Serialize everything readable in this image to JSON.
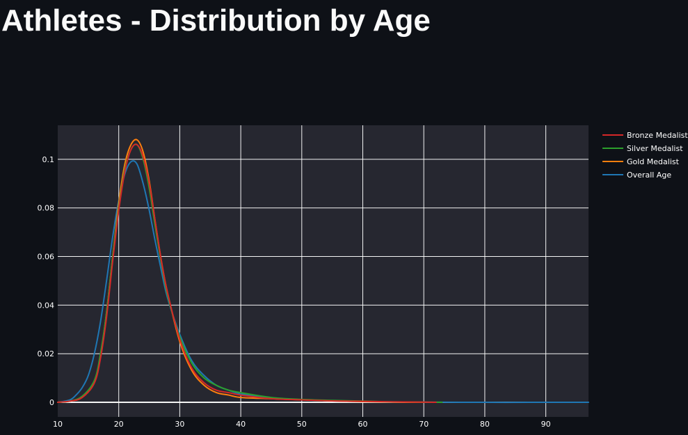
{
  "page": {
    "title": "Athletes - Distribution by Age"
  },
  "chart_data": {
    "type": "line",
    "title": "",
    "xlabel": "",
    "ylabel": "",
    "xlim": [
      10,
      97
    ],
    "ylim": [
      -0.006,
      0.114
    ],
    "x_ticks": [
      10,
      20,
      30,
      40,
      50,
      60,
      70,
      80,
      90
    ],
    "y_ticks": [
      0,
      0.02,
      0.04,
      0.06,
      0.08,
      0.1
    ],
    "y_tick_labels": [
      "0",
      "0.02",
      "0.04",
      "0.06",
      "0.08",
      "0.1"
    ],
    "grid": true,
    "legend_position": "top-right-outside",
    "series": [
      {
        "name": " Bronze Medalist",
        "color": "#d62728",
        "x": [
          10,
          12,
          14,
          16,
          17,
          18,
          19,
          20,
          21,
          22,
          23,
          24,
          25,
          26,
          27,
          28,
          30,
          32,
          34,
          36,
          38,
          40,
          45,
          50,
          55,
          60,
          65,
          70,
          72
        ],
        "y": [
          0,
          0.0005,
          0.002,
          0.008,
          0.018,
          0.035,
          0.058,
          0.079,
          0.095,
          0.104,
          0.106,
          0.101,
          0.09,
          0.074,
          0.058,
          0.045,
          0.026,
          0.014,
          0.008,
          0.005,
          0.004,
          0.003,
          0.0015,
          0.001,
          0.0006,
          0.0004,
          0.0002,
          0.0001,
          0
        ]
      },
      {
        "name": "Silver Medalist",
        "color": "#2ca02c",
        "x": [
          10,
          12,
          14,
          16,
          17,
          18,
          19,
          20,
          21,
          22,
          23,
          24,
          25,
          26,
          27,
          28,
          30,
          32,
          34,
          36,
          38,
          40,
          45,
          50,
          55,
          60,
          65,
          70,
          73
        ],
        "y": [
          0,
          0.0005,
          0.0025,
          0.009,
          0.02,
          0.037,
          0.06,
          0.08,
          0.096,
          0.104,
          0.106,
          0.1,
          0.088,
          0.072,
          0.057,
          0.044,
          0.027,
          0.016,
          0.01,
          0.007,
          0.005,
          0.004,
          0.002,
          0.0012,
          0.0008,
          0.0005,
          0.0002,
          0.0001,
          0
        ]
      },
      {
        "name": "Gold Medalist",
        "color": "#ff7f0e",
        "x": [
          10,
          12,
          14,
          16,
          17,
          18,
          19,
          20,
          21,
          22,
          23,
          24,
          25,
          26,
          27,
          28,
          30,
          32,
          34,
          36,
          38,
          40,
          45,
          50,
          55,
          60,
          65,
          70
        ],
        "y": [
          0,
          0.0005,
          0.002,
          0.008,
          0.019,
          0.037,
          0.06,
          0.082,
          0.098,
          0.106,
          0.108,
          0.103,
          0.091,
          0.074,
          0.058,
          0.045,
          0.025,
          0.013,
          0.007,
          0.004,
          0.003,
          0.002,
          0.0015,
          0.001,
          0.0006,
          0.0003,
          0.0001,
          0
        ]
      },
      {
        "name": "Overall Age",
        "color": "#1f77b4",
        "x": [
          10,
          12,
          13,
          14,
          15,
          16,
          17,
          18,
          19,
          20,
          21,
          22,
          23,
          24,
          25,
          26,
          27,
          28,
          30,
          32,
          34,
          36,
          38,
          40,
          45,
          50,
          55,
          60,
          65,
          70,
          80,
          90,
          97
        ],
        "y": [
          0,
          0.001,
          0.003,
          0.006,
          0.011,
          0.02,
          0.033,
          0.05,
          0.068,
          0.083,
          0.094,
          0.099,
          0.098,
          0.09,
          0.079,
          0.066,
          0.054,
          0.043,
          0.028,
          0.017,
          0.011,
          0.007,
          0.005,
          0.0035,
          0.0018,
          0.001,
          0.0006,
          0.0003,
          0.0002,
          0.0001,
          0,
          0,
          0
        ]
      }
    ]
  }
}
